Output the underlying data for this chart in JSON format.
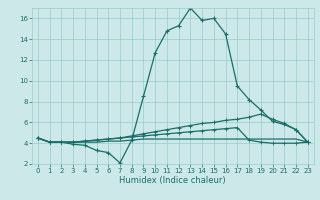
{
  "xlabel": "Humidex (Indice chaleur)",
  "bg_color": "#cce8e8",
  "line_color": "#1a6e6a",
  "grid_color": "#99cccc",
  "xlim": [
    -0.5,
    23.5
  ],
  "ylim": [
    2,
    17
  ],
  "xticks": [
    0,
    1,
    2,
    3,
    4,
    5,
    6,
    7,
    8,
    9,
    10,
    11,
    12,
    13,
    14,
    15,
    16,
    17,
    18,
    19,
    20,
    21,
    22,
    23
  ],
  "yticks": [
    2,
    4,
    6,
    8,
    10,
    12,
    14,
    16
  ],
  "curve1_x": [
    0,
    1,
    2,
    3,
    4,
    5,
    6,
    7,
    8,
    9,
    10,
    11,
    12,
    13,
    14,
    15,
    16,
    17,
    18,
    19,
    20,
    21,
    22,
    23
  ],
  "curve1_y": [
    4.5,
    4.1,
    4.1,
    3.9,
    3.8,
    3.3,
    3.1,
    2.1,
    4.3,
    8.5,
    12.7,
    14.8,
    15.3,
    17.0,
    15.8,
    16.0,
    14.5,
    9.5,
    8.2,
    7.2,
    6.1,
    5.8,
    5.3,
    4.1
  ],
  "curve2_x": [
    0,
    1,
    2,
    3,
    4,
    5,
    6,
    7,
    8,
    9,
    10,
    11,
    12,
    13,
    14,
    15,
    16,
    17,
    18,
    19,
    20,
    21,
    22,
    23
  ],
  "curve2_y": [
    4.5,
    4.1,
    4.1,
    4.1,
    4.2,
    4.3,
    4.4,
    4.5,
    4.7,
    4.9,
    5.1,
    5.3,
    5.5,
    5.7,
    5.9,
    6.0,
    6.2,
    6.3,
    6.5,
    6.8,
    6.3,
    5.9,
    5.3,
    4.1
  ],
  "curve3_x": [
    0,
    1,
    2,
    3,
    4,
    5,
    6,
    7,
    8,
    9,
    10,
    11,
    12,
    13,
    14,
    15,
    16,
    17,
    18,
    19,
    20,
    21,
    22,
    23
  ],
  "curve3_y": [
    4.5,
    4.1,
    4.1,
    4.1,
    4.2,
    4.3,
    4.4,
    4.5,
    4.6,
    4.7,
    4.8,
    4.9,
    5.0,
    5.1,
    5.2,
    5.3,
    5.4,
    5.5,
    4.3,
    4.1,
    4.0,
    4.0,
    4.0,
    4.1
  ],
  "curve4_x": [
    0,
    1,
    2,
    3,
    4,
    5,
    6,
    7,
    8,
    9,
    10,
    11,
    12,
    13,
    14,
    15,
    16,
    17,
    18,
    19,
    20,
    21,
    22,
    23
  ],
  "curve4_y": [
    4.5,
    4.1,
    4.1,
    4.1,
    4.1,
    4.1,
    4.2,
    4.2,
    4.3,
    4.4,
    4.4,
    4.4,
    4.4,
    4.4,
    4.4,
    4.4,
    4.4,
    4.4,
    4.4,
    4.4,
    4.4,
    4.4,
    4.4,
    4.1
  ],
  "xlabel_fontsize": 6.0,
  "tick_fontsize": 5.0,
  "linewidth": 0.9,
  "marker_size": 3.0
}
